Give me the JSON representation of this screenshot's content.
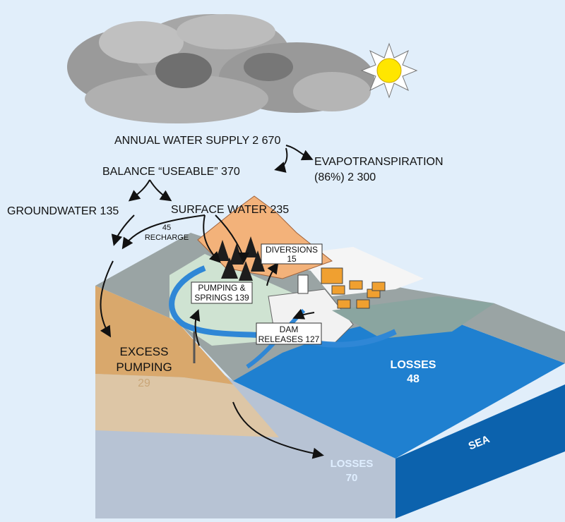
{
  "labels": {
    "annual_supply": "ANNUAL WATER SUPPLY 2 670",
    "evapotranspiration": [
      "EVAPOTRANSPIRATION",
      "(86%) 2 300"
    ],
    "balance": "BALANCE “USEABLE” 370",
    "groundwater": "GROUNDWATER 135",
    "surface_water": "SURFACE WATER 235",
    "recharge": [
      "45",
      "RECHARGE"
    ],
    "diversions": [
      "DIVERSIONS",
      "15"
    ],
    "pumping_springs": [
      "PUMPING &",
      "SPRINGS 139"
    ],
    "dam_releases": [
      "DAM",
      "RELEASES 127"
    ],
    "excess_pumping": [
      "EXCESS",
      "PUMPING",
      "29"
    ],
    "sea_losses": [
      "LOSSES",
      "48"
    ],
    "ground_losses": [
      "LOSSES",
      "70"
    ],
    "sea": "SEA"
  }
}
